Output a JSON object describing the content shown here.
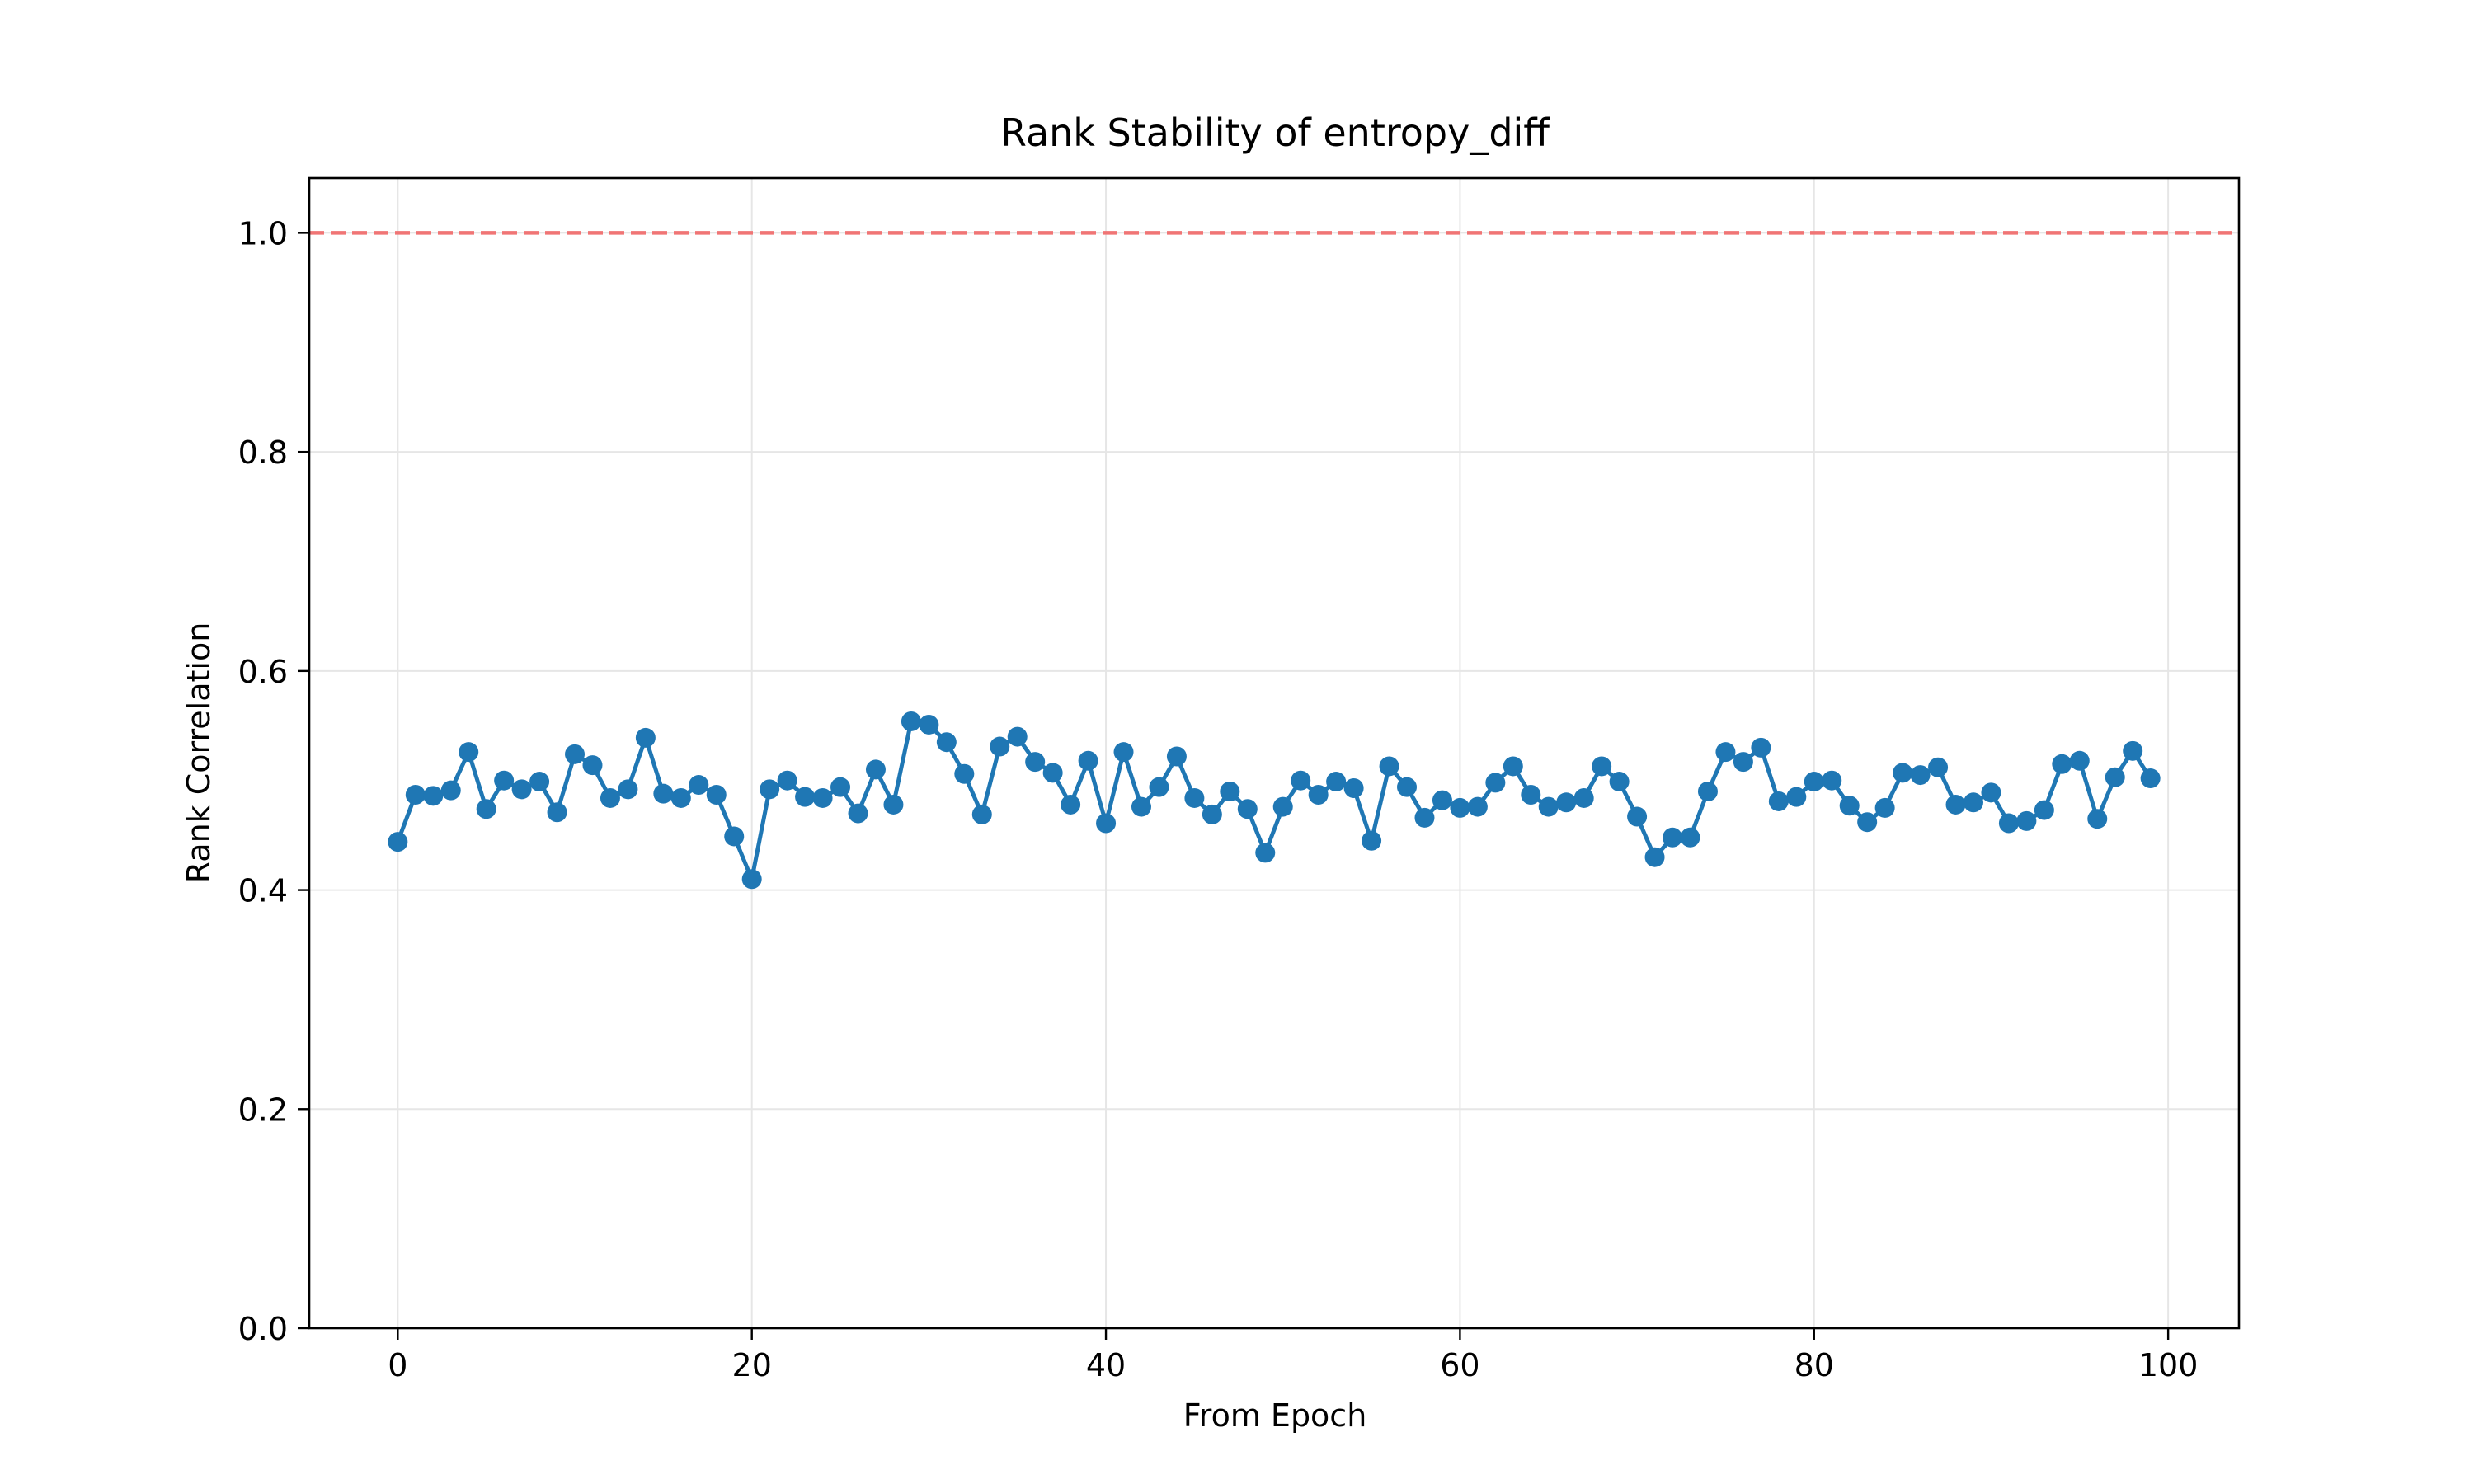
{
  "chart_data": {
    "type": "line",
    "title": "Rank Stability of entropy_diff",
    "xlabel": "From Epoch",
    "ylabel": "Rank Correlation",
    "xlim": [
      -5,
      104
    ],
    "ylim": [
      0.0,
      1.05
    ],
    "xticks": [
      0,
      20,
      40,
      60,
      80,
      100
    ],
    "xtick_labels": [
      "0",
      "20",
      "40",
      "60",
      "80",
      "100"
    ],
    "yticks": [
      0.0,
      0.2,
      0.4,
      0.6,
      0.8,
      1.0
    ],
    "ytick_labels": [
      "0.0",
      "0.2",
      "0.4",
      "0.6",
      "0.8",
      "1.0"
    ],
    "grid": true,
    "reference_line": {
      "y": 1.0,
      "style": "dashed",
      "color": "#f07575"
    },
    "series": [
      {
        "color": "#1f77b4",
        "marker": "circle",
        "x": [
          0,
          1,
          2,
          3,
          4,
          5,
          6,
          7,
          8,
          9,
          10,
          11,
          12,
          13,
          14,
          15,
          16,
          17,
          18,
          19,
          20,
          21,
          22,
          23,
          24,
          25,
          26,
          27,
          28,
          29,
          30,
          31,
          32,
          33,
          34,
          35,
          36,
          37,
          38,
          39,
          40,
          41,
          42,
          43,
          44,
          45,
          46,
          47,
          48,
          49,
          50,
          51,
          52,
          53,
          54,
          55,
          56,
          57,
          58,
          59,
          60,
          61,
          62,
          63,
          64,
          65,
          66,
          67,
          68,
          69,
          70,
          71,
          72,
          73,
          74,
          75,
          76,
          77,
          78,
          79,
          80,
          81,
          82,
          83,
          84,
          85,
          86,
          87,
          88,
          89,
          90,
          91,
          92,
          93,
          94,
          95,
          96,
          97,
          98,
          99
        ],
        "y": [
          0.444,
          0.487,
          0.486,
          0.491,
          0.526,
          0.474,
          0.5,
          0.492,
          0.499,
          0.471,
          0.524,
          0.514,
          0.484,
          0.492,
          0.539,
          0.488,
          0.484,
          0.496,
          0.487,
          0.449,
          0.41,
          0.492,
          0.5,
          0.485,
          0.484,
          0.494,
          0.47,
          0.51,
          0.478,
          0.554,
          0.551,
          0.535,
          0.506,
          0.469,
          0.531,
          0.54,
          0.517,
          0.507,
          0.478,
          0.518,
          0.461,
          0.526,
          0.476,
          0.494,
          0.522,
          0.484,
          0.469,
          0.49,
          0.474,
          0.434,
          0.476,
          0.5,
          0.487,
          0.499,
          0.493,
          0.445,
          0.513,
          0.494,
          0.466,
          0.482,
          0.475,
          0.476,
          0.498,
          0.513,
          0.487,
          0.476,
          0.48,
          0.484,
          0.513,
          0.499,
          0.467,
          0.43,
          0.448,
          0.448,
          0.49,
          0.526,
          0.517,
          0.53,
          0.481,
          0.485,
          0.499,
          0.5,
          0.477,
          0.462,
          0.475,
          0.507,
          0.505,
          0.512,
          0.478,
          0.48,
          0.489,
          0.461,
          0.463,
          0.473,
          0.515,
          0.518,
          0.465,
          0.503,
          0.527,
          0.502
        ]
      }
    ]
  }
}
